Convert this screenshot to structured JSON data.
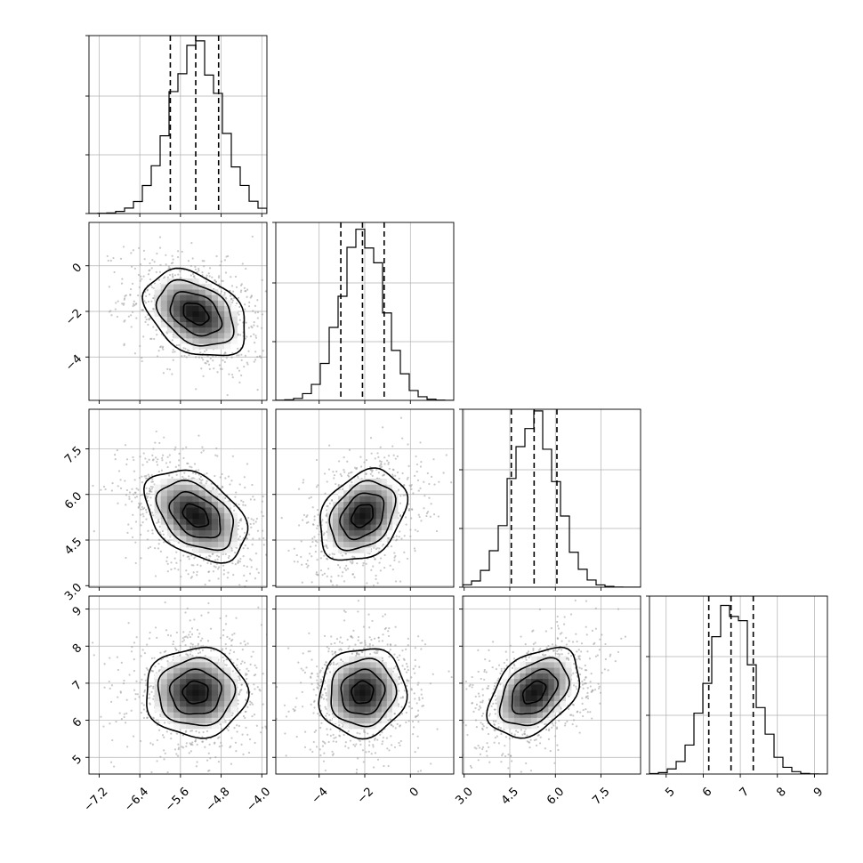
{
  "chart_data": {
    "type": "corner",
    "params": [
      {
        "ticks": [
          -7.2,
          -6.4,
          -5.6,
          -4.8,
          -4.0
        ],
        "tick_labels": [
          "−7.2",
          "−6.4",
          "−5.6",
          "−4.8",
          "−4.0"
        ],
        "range": [
          -7.4,
          -3.9
        ],
        "mean": -5.3,
        "std": 0.5,
        "quantiles": [
          -5.8,
          -5.3,
          -4.85
        ],
        "hist_ticks": [
          0.0,
          0.33,
          0.66,
          1.0
        ],
        "hist_peak": 0.95
      },
      {
        "ticks": [
          -4,
          -2,
          0
        ],
        "tick_labels": [
          "−4",
          "−2",
          "0"
        ],
        "range": [
          -5.9,
          1.9
        ],
        "mean": -2.1,
        "std": 0.95,
        "quantiles": [
          -3.05,
          -2.1,
          -1.15
        ],
        "hist_ticks": [
          0.0,
          0.33,
          0.66,
          1.0
        ],
        "hist_peak": 0.95
      },
      {
        "ticks": [
          3.0,
          4.5,
          6.0,
          7.5
        ],
        "tick_labels": [
          "3.0",
          "4.5",
          "6.0",
          "7.5"
        ],
        "range": [
          2.95,
          8.8
        ],
        "mean": 5.3,
        "std": 0.75,
        "quantiles": [
          4.55,
          5.3,
          6.05
        ],
        "hist_ticks": [
          0.0,
          0.33,
          0.66,
          1.0
        ],
        "hist_peak": 0.95
      },
      {
        "ticks": [
          5,
          6,
          7,
          8,
          9
        ],
        "tick_labels": [
          "5",
          "6",
          "7",
          "8",
          "9"
        ],
        "range": [
          4.55,
          9.35
        ],
        "mean": 6.75,
        "std": 0.6,
        "quantiles": [
          6.15,
          6.75,
          7.35
        ],
        "hist_ticks": [
          0.0,
          0.33,
          0.66,
          1.0
        ],
        "hist_peak": 0.95
      }
    ],
    "correlations": {
      "1-0": -0.35,
      "2-0": -0.4,
      "2-1": 0.3,
      "3-0": 0.0,
      "3-1": 0.05,
      "3-2": 0.4
    },
    "contour_levels_sigma": [
      0.5,
      1.0,
      1.5,
      2.0
    ],
    "grid": true
  }
}
